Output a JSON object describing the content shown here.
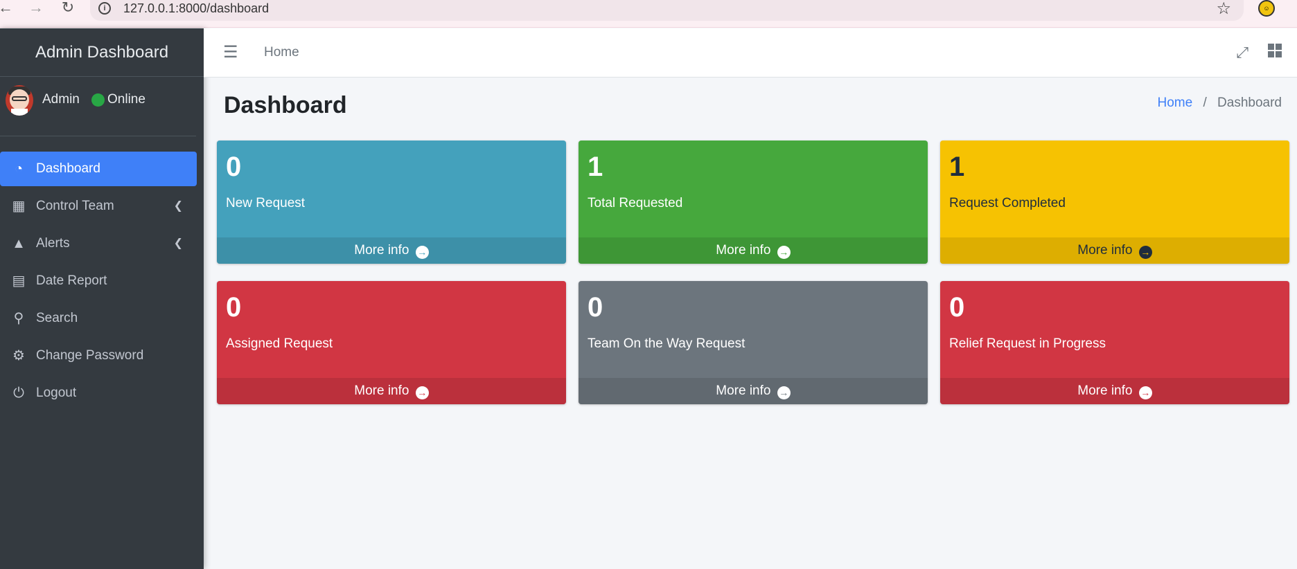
{
  "browser": {
    "url": "127.0.0.1:8000/dashboard",
    "back_icon": "arrow-left-icon",
    "forward_icon": "arrow-right-icon",
    "reload_icon": "reload-icon"
  },
  "sidebar": {
    "brand": "Admin Dashboard",
    "user": {
      "name": "Admin",
      "status": "Online"
    },
    "items": [
      {
        "label": "Dashboard",
        "icon": "tachometer-icon",
        "active": true,
        "has_children": false
      },
      {
        "label": "Control Team",
        "icon": "grid-icon",
        "active": false,
        "has_children": true
      },
      {
        "label": "Alerts",
        "icon": "tree-icon",
        "active": false,
        "has_children": true
      },
      {
        "label": "Date Report",
        "icon": "calendar-icon",
        "active": false,
        "has_children": false
      },
      {
        "label": "Search",
        "icon": "search-icon",
        "active": false,
        "has_children": false
      },
      {
        "label": "Change Password",
        "icon": "gears-icon",
        "active": false,
        "has_children": false
      },
      {
        "label": "Logout",
        "icon": "power-icon",
        "active": false,
        "has_children": false
      }
    ]
  },
  "topnav": {
    "home": "Home"
  },
  "header": {
    "title": "Dashboard",
    "breadcrumb_home": "Home",
    "breadcrumb_sep": "/",
    "breadcrumb_current": "Dashboard"
  },
  "boxes": [
    {
      "count": "0",
      "label": "New Request",
      "footer": "More info",
      "color": "#44a1bc"
    },
    {
      "count": "1",
      "label": "Total Requested",
      "footer": "More info",
      "color": "#46a83d"
    },
    {
      "count": "1",
      "label": "Request Completed",
      "footer": "More info",
      "color": "#f6c202"
    },
    {
      "count": "0",
      "label": "Assigned Request",
      "footer": "More info",
      "color": "#d13643"
    },
    {
      "count": "0",
      "label": "Team On the Way Request",
      "footer": "More info",
      "color": "#6c757d"
    },
    {
      "count": "0",
      "label": "Relief Request in Progress",
      "footer": "More info",
      "color": "#d13643"
    }
  ],
  "colors": {
    "sidebar_bg": "#343a40",
    "active_bg": "#3f80f8",
    "online": "#28a745"
  }
}
